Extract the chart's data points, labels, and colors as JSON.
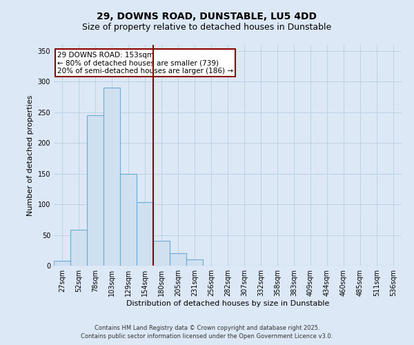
{
  "title_line1": "29, DOWNS ROAD, DUNSTABLE, LU5 4DD",
  "title_line2": "Size of property relative to detached houses in Dunstable",
  "xlabel": "Distribution of detached houses by size in Dunstable",
  "ylabel": "Number of detached properties",
  "categories": [
    "27sqm",
    "52sqm",
    "78sqm",
    "103sqm",
    "129sqm",
    "154sqm",
    "180sqm",
    "205sqm",
    "231sqm",
    "256sqm",
    "282sqm",
    "307sqm",
    "332sqm",
    "358sqm",
    "383sqm",
    "409sqm",
    "434sqm",
    "460sqm",
    "485sqm",
    "511sqm",
    "536sqm"
  ],
  "values": [
    8,
    58,
    245,
    290,
    150,
    104,
    40,
    20,
    10,
    0,
    0,
    0,
    0,
    0,
    0,
    0,
    0,
    0,
    0,
    0,
    0
  ],
  "bar_color": "#cfe0f0",
  "bar_edge_color": "#6aaad4",
  "ylim": [
    0,
    360
  ],
  "yticks": [
    0,
    50,
    100,
    150,
    200,
    250,
    300,
    350
  ],
  "annotation_box_text": "29 DOWNS ROAD: 153sqm\n← 80% of detached houses are smaller (739)\n20% of semi-detached houses are larger (186) →",
  "annotation_box_color": "#ffffff",
  "annotation_box_edge_color": "#8b0000",
  "property_line_x": 5.5,
  "property_line_color": "#8b0000",
  "footer_line1": "Contains HM Land Registry data © Crown copyright and database right 2025.",
  "footer_line2": "Contains public sector information licensed under the Open Government Licence v3.0.",
  "background_color": "#dce8f5",
  "grid_color": "#b8cfe0",
  "title_fontsize": 10,
  "subtitle_fontsize": 9,
  "tick_fontsize": 7,
  "label_fontsize": 8,
  "annotation_fontsize": 7.5,
  "footer_fontsize": 6
}
